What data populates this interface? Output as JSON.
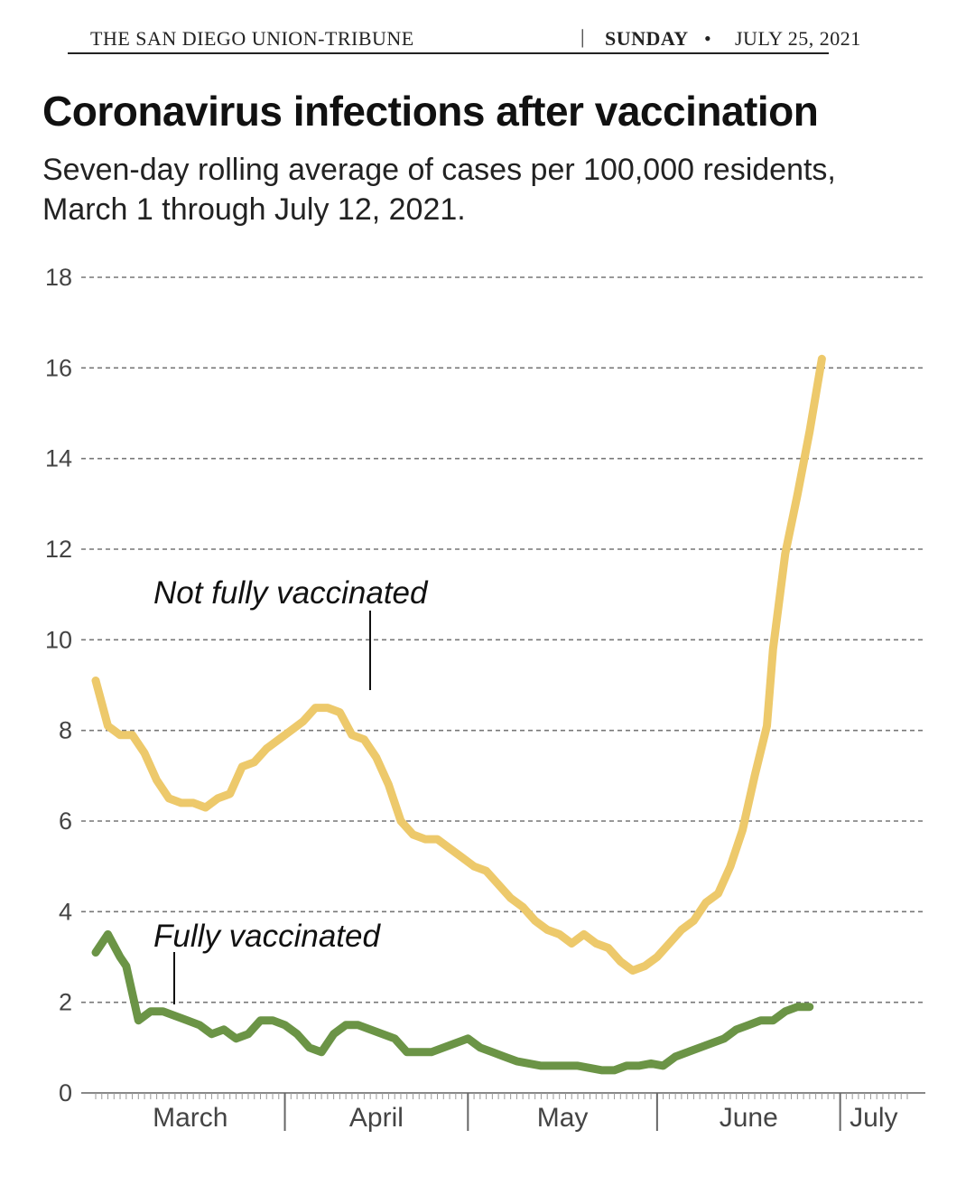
{
  "masthead": {
    "publication": "THE SAN DIEGO UNION-TRIBUNE",
    "separator": "|",
    "day": "SUNDAY",
    "bullet": "•",
    "date": "JULY 25, 2021"
  },
  "chart_data": {
    "type": "line",
    "title": "Coronavirus infections after vaccination",
    "subtitle": "Seven-day rolling average of cases per 100,000 residents, March 1 through July 12, 2021.",
    "xlabel": "",
    "ylabel": "",
    "ylim": [
      0,
      18
    ],
    "yticks": [
      "0",
      "2",
      "4",
      "6",
      "8",
      "10",
      "12",
      "14",
      "16",
      "18"
    ],
    "xtick_labels": [
      "March",
      "April",
      "May",
      "June",
      "July"
    ],
    "xlim": [
      "2021-03-01",
      "2021-07-12"
    ],
    "grid": "horizontal dashed",
    "colors": {
      "not_fully_vaccinated": "#edc96b",
      "fully_vaccinated": "#6b9446"
    },
    "annotations": [
      {
        "text": "Not fully vaccinated",
        "series": "not_fully_vaccinated",
        "x": "2021-04-01"
      },
      {
        "text": "Fully vaccinated",
        "series": "fully_vaccinated",
        "x": "2021-03-12"
      }
    ],
    "series": [
      {
        "id": "not_fully_vaccinated",
        "name": "Not fully vaccinated",
        "points": [
          [
            "2021-03-01",
            9.1
          ],
          [
            "2021-03-03",
            8.1
          ],
          [
            "2021-03-05",
            7.9
          ],
          [
            "2021-03-07",
            7.9
          ],
          [
            "2021-03-09",
            7.5
          ],
          [
            "2021-03-11",
            6.9
          ],
          [
            "2021-03-13",
            6.5
          ],
          [
            "2021-03-15",
            6.4
          ],
          [
            "2021-03-17",
            6.4
          ],
          [
            "2021-03-19",
            6.3
          ],
          [
            "2021-03-21",
            6.5
          ],
          [
            "2021-03-23",
            6.6
          ],
          [
            "2021-03-25",
            7.2
          ],
          [
            "2021-03-27",
            7.3
          ],
          [
            "2021-03-29",
            7.6
          ],
          [
            "2021-03-31",
            7.8
          ],
          [
            "2021-04-02",
            8.0
          ],
          [
            "2021-04-04",
            8.2
          ],
          [
            "2021-04-06",
            8.5
          ],
          [
            "2021-04-08",
            8.5
          ],
          [
            "2021-04-10",
            8.4
          ],
          [
            "2021-04-12",
            7.9
          ],
          [
            "2021-04-14",
            7.8
          ],
          [
            "2021-04-16",
            7.4
          ],
          [
            "2021-04-18",
            6.8
          ],
          [
            "2021-04-20",
            6.0
          ],
          [
            "2021-04-22",
            5.7
          ],
          [
            "2021-04-24",
            5.6
          ],
          [
            "2021-04-26",
            5.6
          ],
          [
            "2021-04-28",
            5.4
          ],
          [
            "2021-04-30",
            5.2
          ],
          [
            "2021-05-02",
            5.0
          ],
          [
            "2021-05-04",
            4.9
          ],
          [
            "2021-05-06",
            4.6
          ],
          [
            "2021-05-08",
            4.3
          ],
          [
            "2021-05-10",
            4.1
          ],
          [
            "2021-05-12",
            3.8
          ],
          [
            "2021-05-14",
            3.6
          ],
          [
            "2021-05-16",
            3.5
          ],
          [
            "2021-05-18",
            3.3
          ],
          [
            "2021-05-20",
            3.5
          ],
          [
            "2021-05-22",
            3.3
          ],
          [
            "2021-05-24",
            3.2
          ],
          [
            "2021-05-26",
            2.9
          ],
          [
            "2021-05-28",
            2.7
          ],
          [
            "2021-05-30",
            2.8
          ],
          [
            "2021-06-01",
            3.0
          ],
          [
            "2021-06-03",
            3.3
          ],
          [
            "2021-06-05",
            3.6
          ],
          [
            "2021-06-07",
            3.8
          ],
          [
            "2021-06-09",
            4.2
          ],
          [
            "2021-06-11",
            4.4
          ],
          [
            "2021-06-13",
            5.0
          ],
          [
            "2021-06-15",
            5.8
          ],
          [
            "2021-06-17",
            7.0
          ],
          [
            "2021-06-19",
            8.1
          ],
          [
            "2021-06-20",
            9.8
          ],
          [
            "2021-06-22",
            11.9
          ],
          [
            "2021-06-24",
            13.2
          ],
          [
            "2021-06-26",
            14.6
          ],
          [
            "2021-06-28",
            16.2
          ]
        ]
      },
      {
        "id": "fully_vaccinated",
        "name": "Fully vaccinated",
        "points": [
          [
            "2021-03-01",
            3.1
          ],
          [
            "2021-03-03",
            3.5
          ],
          [
            "2021-03-05",
            3.0
          ],
          [
            "2021-03-06",
            2.8
          ],
          [
            "2021-03-08",
            1.6
          ],
          [
            "2021-03-10",
            1.8
          ],
          [
            "2021-03-12",
            1.8
          ],
          [
            "2021-03-14",
            1.7
          ],
          [
            "2021-03-16",
            1.6
          ],
          [
            "2021-03-18",
            1.5
          ],
          [
            "2021-03-20",
            1.3
          ],
          [
            "2021-03-22",
            1.4
          ],
          [
            "2021-03-24",
            1.2
          ],
          [
            "2021-03-26",
            1.3
          ],
          [
            "2021-03-28",
            1.6
          ],
          [
            "2021-03-30",
            1.6
          ],
          [
            "2021-04-01",
            1.5
          ],
          [
            "2021-04-03",
            1.3
          ],
          [
            "2021-04-05",
            1.0
          ],
          [
            "2021-04-07",
            0.9
          ],
          [
            "2021-04-09",
            1.3
          ],
          [
            "2021-04-11",
            1.5
          ],
          [
            "2021-04-13",
            1.5
          ],
          [
            "2021-04-15",
            1.4
          ],
          [
            "2021-04-17",
            1.3
          ],
          [
            "2021-04-19",
            1.2
          ],
          [
            "2021-04-21",
            0.9
          ],
          [
            "2021-04-23",
            0.9
          ],
          [
            "2021-04-25",
            0.9
          ],
          [
            "2021-04-27",
            1.0
          ],
          [
            "2021-04-29",
            1.1
          ],
          [
            "2021-05-01",
            1.2
          ],
          [
            "2021-05-03",
            1.0
          ],
          [
            "2021-05-05",
            0.9
          ],
          [
            "2021-05-07",
            0.8
          ],
          [
            "2021-05-09",
            0.7
          ],
          [
            "2021-05-11",
            0.65
          ],
          [
            "2021-05-13",
            0.6
          ],
          [
            "2021-05-15",
            0.6
          ],
          [
            "2021-05-17",
            0.6
          ],
          [
            "2021-05-19",
            0.6
          ],
          [
            "2021-05-21",
            0.55
          ],
          [
            "2021-05-23",
            0.5
          ],
          [
            "2021-05-25",
            0.5
          ],
          [
            "2021-05-27",
            0.6
          ],
          [
            "2021-05-29",
            0.6
          ],
          [
            "2021-05-31",
            0.65
          ],
          [
            "2021-06-02",
            0.6
          ],
          [
            "2021-06-04",
            0.8
          ],
          [
            "2021-06-06",
            0.9
          ],
          [
            "2021-06-08",
            1.0
          ],
          [
            "2021-06-10",
            1.1
          ],
          [
            "2021-06-12",
            1.2
          ],
          [
            "2021-06-14",
            1.4
          ],
          [
            "2021-06-16",
            1.5
          ],
          [
            "2021-06-18",
            1.6
          ],
          [
            "2021-06-20",
            1.6
          ],
          [
            "2021-06-22",
            1.8
          ],
          [
            "2021-06-24",
            1.9
          ],
          [
            "2021-06-26",
            1.9
          ]
        ]
      }
    ]
  }
}
